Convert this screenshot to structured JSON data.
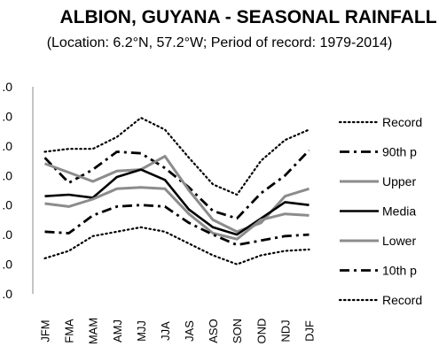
{
  "chart_data": {
    "type": "line",
    "title": "ALBION, GUYANA - SEASONAL RAINFALL",
    "subtitle": "(Location: 6.2°N, 57.2°W; Period of record: 1979-2014)",
    "categories": [
      "JFM",
      "FMA",
      "MAM",
      "AMJ",
      "MJJ",
      "JJA",
      "JAS",
      "ASO",
      "SON",
      "OND",
      "NDJ",
      "DJF"
    ],
    "y_tick_labels": [
      ".0",
      ".0",
      ".0",
      ".0",
      ".0",
      ".0",
      ".0",
      ".0"
    ],
    "ylim": [
      0,
      7
    ],
    "grid": false,
    "legend_position": "right",
    "series": [
      {
        "name": "Record",
        "style": "dotted",
        "color": "#000000",
        "values": [
          4.8,
          4.9,
          4.9,
          5.3,
          5.95,
          5.55,
          4.6,
          3.7,
          3.35,
          4.5,
          5.2,
          5.55
        ]
      },
      {
        "name": "90th p",
        "style": "dashdot",
        "color": "#000000",
        "values": [
          4.6,
          3.75,
          4.2,
          4.8,
          4.75,
          4.25,
          3.6,
          2.8,
          2.55,
          3.4,
          4.0,
          4.85
        ]
      },
      {
        "name": "Upper",
        "style": "solid",
        "color": "#8c8c8c",
        "values": [
          4.4,
          4.1,
          3.8,
          4.15,
          4.2,
          4.65,
          3.5,
          2.5,
          2.1,
          2.4,
          3.3,
          3.55
        ]
      },
      {
        "name": "Media",
        "style": "solid",
        "color": "#000000",
        "values": [
          3.3,
          3.35,
          3.25,
          3.95,
          4.2,
          3.85,
          2.85,
          2.25,
          2.0,
          2.55,
          3.1,
          3.0
        ]
      },
      {
        "name": "Lower",
        "style": "solid",
        "color": "#8c8c8c",
        "values": [
          3.05,
          2.95,
          3.2,
          3.55,
          3.6,
          3.55,
          2.7,
          2.05,
          1.85,
          2.5,
          2.7,
          2.65
        ]
      },
      {
        "name": "10th p",
        "style": "dashdot",
        "color": "#000000",
        "values": [
          2.1,
          2.05,
          2.65,
          2.95,
          3.0,
          2.95,
          2.4,
          2.0,
          1.65,
          1.8,
          1.95,
          2.0
        ]
      },
      {
        "name": "Record",
        "style": "dotted",
        "color": "#000000",
        "values": [
          1.2,
          1.45,
          1.95,
          2.1,
          2.25,
          2.1,
          1.7,
          1.3,
          1.0,
          1.3,
          1.45,
          1.5
        ]
      }
    ]
  }
}
